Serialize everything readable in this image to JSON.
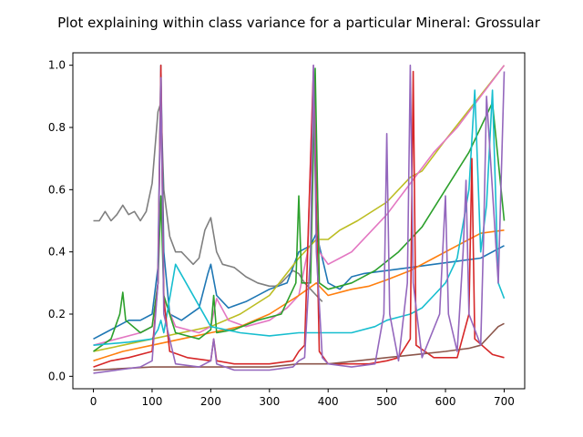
{
  "chart_data": {
    "type": "line",
    "title": "Plot explaining within class variance for a particular Mineral: Grossular",
    "xlabel": "",
    "ylabel": "",
    "xlim": [
      -35,
      735
    ],
    "ylim": [
      -0.04,
      1.04
    ],
    "x_ticks": [
      0,
      100,
      200,
      300,
      400,
      500,
      600,
      700
    ],
    "y_ticks": [
      0.0,
      0.2,
      0.4,
      0.6,
      0.8,
      1.0
    ],
    "grid": false,
    "legend": "none",
    "palette": [
      "#1f77b4",
      "#ff7f0e",
      "#2ca02c",
      "#d62728",
      "#9467bd",
      "#8c564b",
      "#e377c2",
      "#7f7f7f",
      "#bcbd22",
      "#17becf"
    ],
    "series": [
      {
        "color": "#7f7f7f",
        "x": [
          0,
          10,
          20,
          30,
          40,
          50,
          60,
          70,
          80,
          90,
          100,
          110,
          115,
          120,
          130,
          140,
          150,
          160,
          170,
          180,
          190,
          200,
          210,
          220,
          240,
          260,
          280,
          300,
          310,
          320,
          330,
          340,
          350,
          360,
          370,
          380,
          390
        ],
        "y": [
          0.5,
          0.5,
          0.53,
          0.5,
          0.52,
          0.55,
          0.52,
          0.53,
          0.5,
          0.53,
          0.62,
          0.85,
          0.88,
          0.6,
          0.45,
          0.4,
          0.4,
          0.38,
          0.36,
          0.38,
          0.47,
          0.51,
          0.4,
          0.36,
          0.35,
          0.32,
          0.3,
          0.29,
          0.29,
          0.3,
          0.32,
          0.34,
          0.33,
          0.3,
          0.28,
          0.26,
          0.24
        ]
      },
      {
        "color": "#1f77b4",
        "x": [
          0,
          20,
          40,
          60,
          80,
          100,
          110,
          115,
          120,
          130,
          150,
          180,
          195,
          200,
          210,
          230,
          260,
          300,
          330,
          350,
          370,
          380,
          400,
          420,
          440,
          460,
          500,
          540,
          580,
          620,
          660,
          700
        ],
        "y": [
          0.12,
          0.14,
          0.16,
          0.18,
          0.18,
          0.2,
          0.35,
          1.0,
          0.4,
          0.2,
          0.18,
          0.22,
          0.33,
          0.36,
          0.26,
          0.22,
          0.24,
          0.28,
          0.3,
          0.4,
          0.42,
          0.46,
          0.3,
          0.28,
          0.32,
          0.33,
          0.34,
          0.35,
          0.36,
          0.37,
          0.38,
          0.42
        ]
      },
      {
        "color": "#bcbd22",
        "x": [
          0,
          50,
          100,
          150,
          200,
          250,
          300,
          350,
          380,
          400,
          420,
          450,
          500,
          540,
          560,
          600,
          650,
          700
        ],
        "y": [
          0.08,
          0.1,
          0.12,
          0.14,
          0.16,
          0.2,
          0.26,
          0.38,
          0.44,
          0.44,
          0.47,
          0.5,
          0.56,
          0.64,
          0.66,
          0.76,
          0.88,
          1.0
        ]
      },
      {
        "color": "#e377c2",
        "x": [
          0,
          40,
          80,
          100,
          110,
          115,
          120,
          140,
          180,
          200,
          210,
          230,
          260,
          300,
          330,
          350,
          365,
          375,
          385,
          400,
          420,
          440,
          470,
          500,
          540,
          580,
          620,
          660,
          700
        ],
        "y": [
          0.1,
          0.12,
          0.14,
          0.16,
          0.3,
          0.98,
          0.25,
          0.16,
          0.14,
          0.16,
          0.25,
          0.18,
          0.16,
          0.18,
          0.22,
          0.26,
          0.4,
          1.0,
          0.4,
          0.36,
          0.38,
          0.4,
          0.46,
          0.52,
          0.62,
          0.72,
          0.8,
          0.9,
          1.0
        ]
      },
      {
        "color": "#ff7f0e",
        "x": [
          0,
          50,
          100,
          150,
          200,
          250,
          300,
          350,
          380,
          400,
          440,
          470,
          500,
          540,
          580,
          620,
          660,
          700
        ],
        "y": [
          0.05,
          0.08,
          0.1,
          0.12,
          0.14,
          0.16,
          0.2,
          0.26,
          0.3,
          0.26,
          0.28,
          0.29,
          0.31,
          0.34,
          0.38,
          0.42,
          0.46,
          0.47
        ]
      },
      {
        "color": "#2ca02c",
        "x": [
          0,
          30,
          45,
          50,
          55,
          80,
          100,
          110,
          115,
          120,
          140,
          180,
          200,
          205,
          210,
          240,
          280,
          320,
          345,
          350,
          355,
          370,
          378,
          385,
          400,
          440,
          480,
          520,
          560,
          600,
          640,
          680,
          700
        ],
        "y": [
          0.08,
          0.12,
          0.2,
          0.27,
          0.18,
          0.14,
          0.16,
          0.3,
          0.58,
          0.26,
          0.14,
          0.12,
          0.15,
          0.26,
          0.14,
          0.15,
          0.18,
          0.2,
          0.3,
          0.58,
          0.3,
          0.3,
          0.99,
          0.3,
          0.28,
          0.3,
          0.34,
          0.4,
          0.48,
          0.6,
          0.72,
          0.88,
          0.5
        ]
      },
      {
        "color": "#17becf",
        "x": [
          0,
          60,
          100,
          110,
          115,
          120,
          140,
          200,
          250,
          300,
          350,
          400,
          440,
          480,
          500,
          520,
          540,
          560,
          580,
          600,
          620,
          640,
          650,
          660,
          670,
          680,
          690,
          700
        ],
        "y": [
          0.1,
          0.11,
          0.12,
          0.15,
          0.18,
          0.14,
          0.36,
          0.16,
          0.14,
          0.13,
          0.14,
          0.14,
          0.14,
          0.16,
          0.18,
          0.19,
          0.2,
          0.22,
          0.26,
          0.3,
          0.38,
          0.6,
          0.92,
          0.4,
          0.55,
          0.92,
          0.3,
          0.25
        ]
      },
      {
        "color": "#d62728",
        "x": [
          0,
          30,
          60,
          100,
          110,
          115,
          120,
          130,
          160,
          200,
          205,
          210,
          240,
          300,
          340,
          350,
          360,
          375,
          385,
          400,
          440,
          470,
          500,
          520,
          540,
          545,
          550,
          580,
          620,
          640,
          645,
          650,
          680,
          700
        ],
        "y": [
          0.03,
          0.05,
          0.06,
          0.08,
          0.3,
          1.0,
          0.25,
          0.08,
          0.06,
          0.05,
          0.12,
          0.05,
          0.04,
          0.04,
          0.05,
          0.08,
          0.1,
          0.98,
          0.08,
          0.04,
          0.04,
          0.04,
          0.05,
          0.06,
          0.12,
          0.98,
          0.1,
          0.06,
          0.06,
          0.2,
          0.7,
          0.12,
          0.07,
          0.06
        ]
      },
      {
        "color": "#8c564b",
        "x": [
          0,
          100,
          200,
          300,
          350,
          400,
          450,
          500,
          550,
          600,
          640,
          660,
          680,
          690,
          700
        ],
        "y": [
          0.02,
          0.03,
          0.03,
          0.03,
          0.04,
          0.04,
          0.05,
          0.06,
          0.07,
          0.08,
          0.09,
          0.1,
          0.14,
          0.16,
          0.17
        ]
      },
      {
        "color": "#9467bd",
        "x": [
          0,
          40,
          80,
          100,
          110,
          115,
          120,
          140,
          180,
          200,
          205,
          210,
          240,
          300,
          340,
          350,
          360,
          370,
          375,
          380,
          390,
          400,
          440,
          480,
          495,
          500,
          505,
          520,
          535,
          540,
          545,
          560,
          590,
          600,
          605,
          620,
          630,
          635,
          640,
          660,
          665,
          670,
          690,
          700
        ],
        "y": [
          0.01,
          0.02,
          0.03,
          0.05,
          0.3,
          0.96,
          0.2,
          0.04,
          0.03,
          0.05,
          0.12,
          0.04,
          0.02,
          0.02,
          0.03,
          0.05,
          0.06,
          0.4,
          1.0,
          0.4,
          0.06,
          0.04,
          0.03,
          0.04,
          0.2,
          0.78,
          0.2,
          0.05,
          0.3,
          1.0,
          0.3,
          0.06,
          0.2,
          0.58,
          0.2,
          0.08,
          0.4,
          0.63,
          0.2,
          0.1,
          0.45,
          0.9,
          0.3,
          0.98
        ]
      }
    ]
  }
}
